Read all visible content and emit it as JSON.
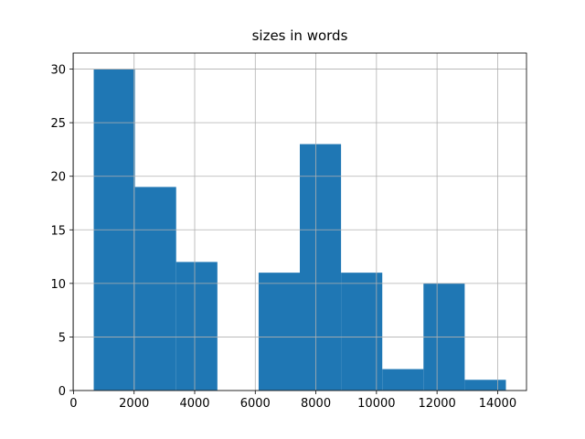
{
  "chart_data": {
    "type": "histogram",
    "title": "sizes in words",
    "bins": [
      667,
      2028,
      3388,
      4749,
      6110,
      7470,
      8831,
      10192,
      11552,
      12913,
      14273
    ],
    "values": [
      30,
      19,
      12,
      0,
      11,
      23,
      11,
      2,
      10,
      1
    ],
    "color": "#1f77b4",
    "xlim": [
      -13,
      14953
    ],
    "xticks": [
      0,
      2000,
      4000,
      6000,
      8000,
      10000,
      12000,
      14000
    ],
    "ylim": [
      0,
      31.5
    ],
    "yticks": [
      0,
      5,
      10,
      15,
      20,
      25,
      30
    ],
    "grid": true
  }
}
